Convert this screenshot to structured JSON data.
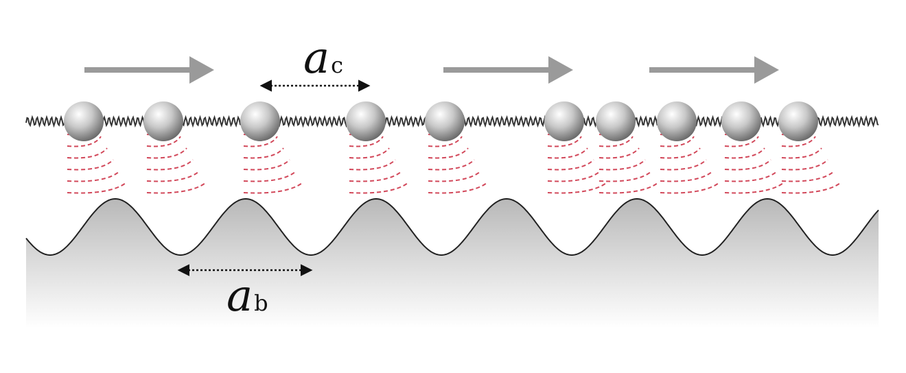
{
  "labels": {
    "chain_spacing": {
      "symbol": "a",
      "subscript": "c"
    },
    "substrate_period": {
      "symbol": "a",
      "subscript": "b"
    }
  },
  "colors": {
    "arrow": "#9a9a9a",
    "bead_light": "#ffffff",
    "bead_dark": "#6b6b6b",
    "spring": "#333333",
    "trail": "#d2485a",
    "substrate_top": "#bdbdbd",
    "substrate_bottom": "#ffffff",
    "outline": "#222222"
  },
  "icons": {
    "arrow": "right-arrow-icon",
    "bead": "sphere-icon",
    "dimension": "double-headed-dotted-arrow-icon"
  }
}
